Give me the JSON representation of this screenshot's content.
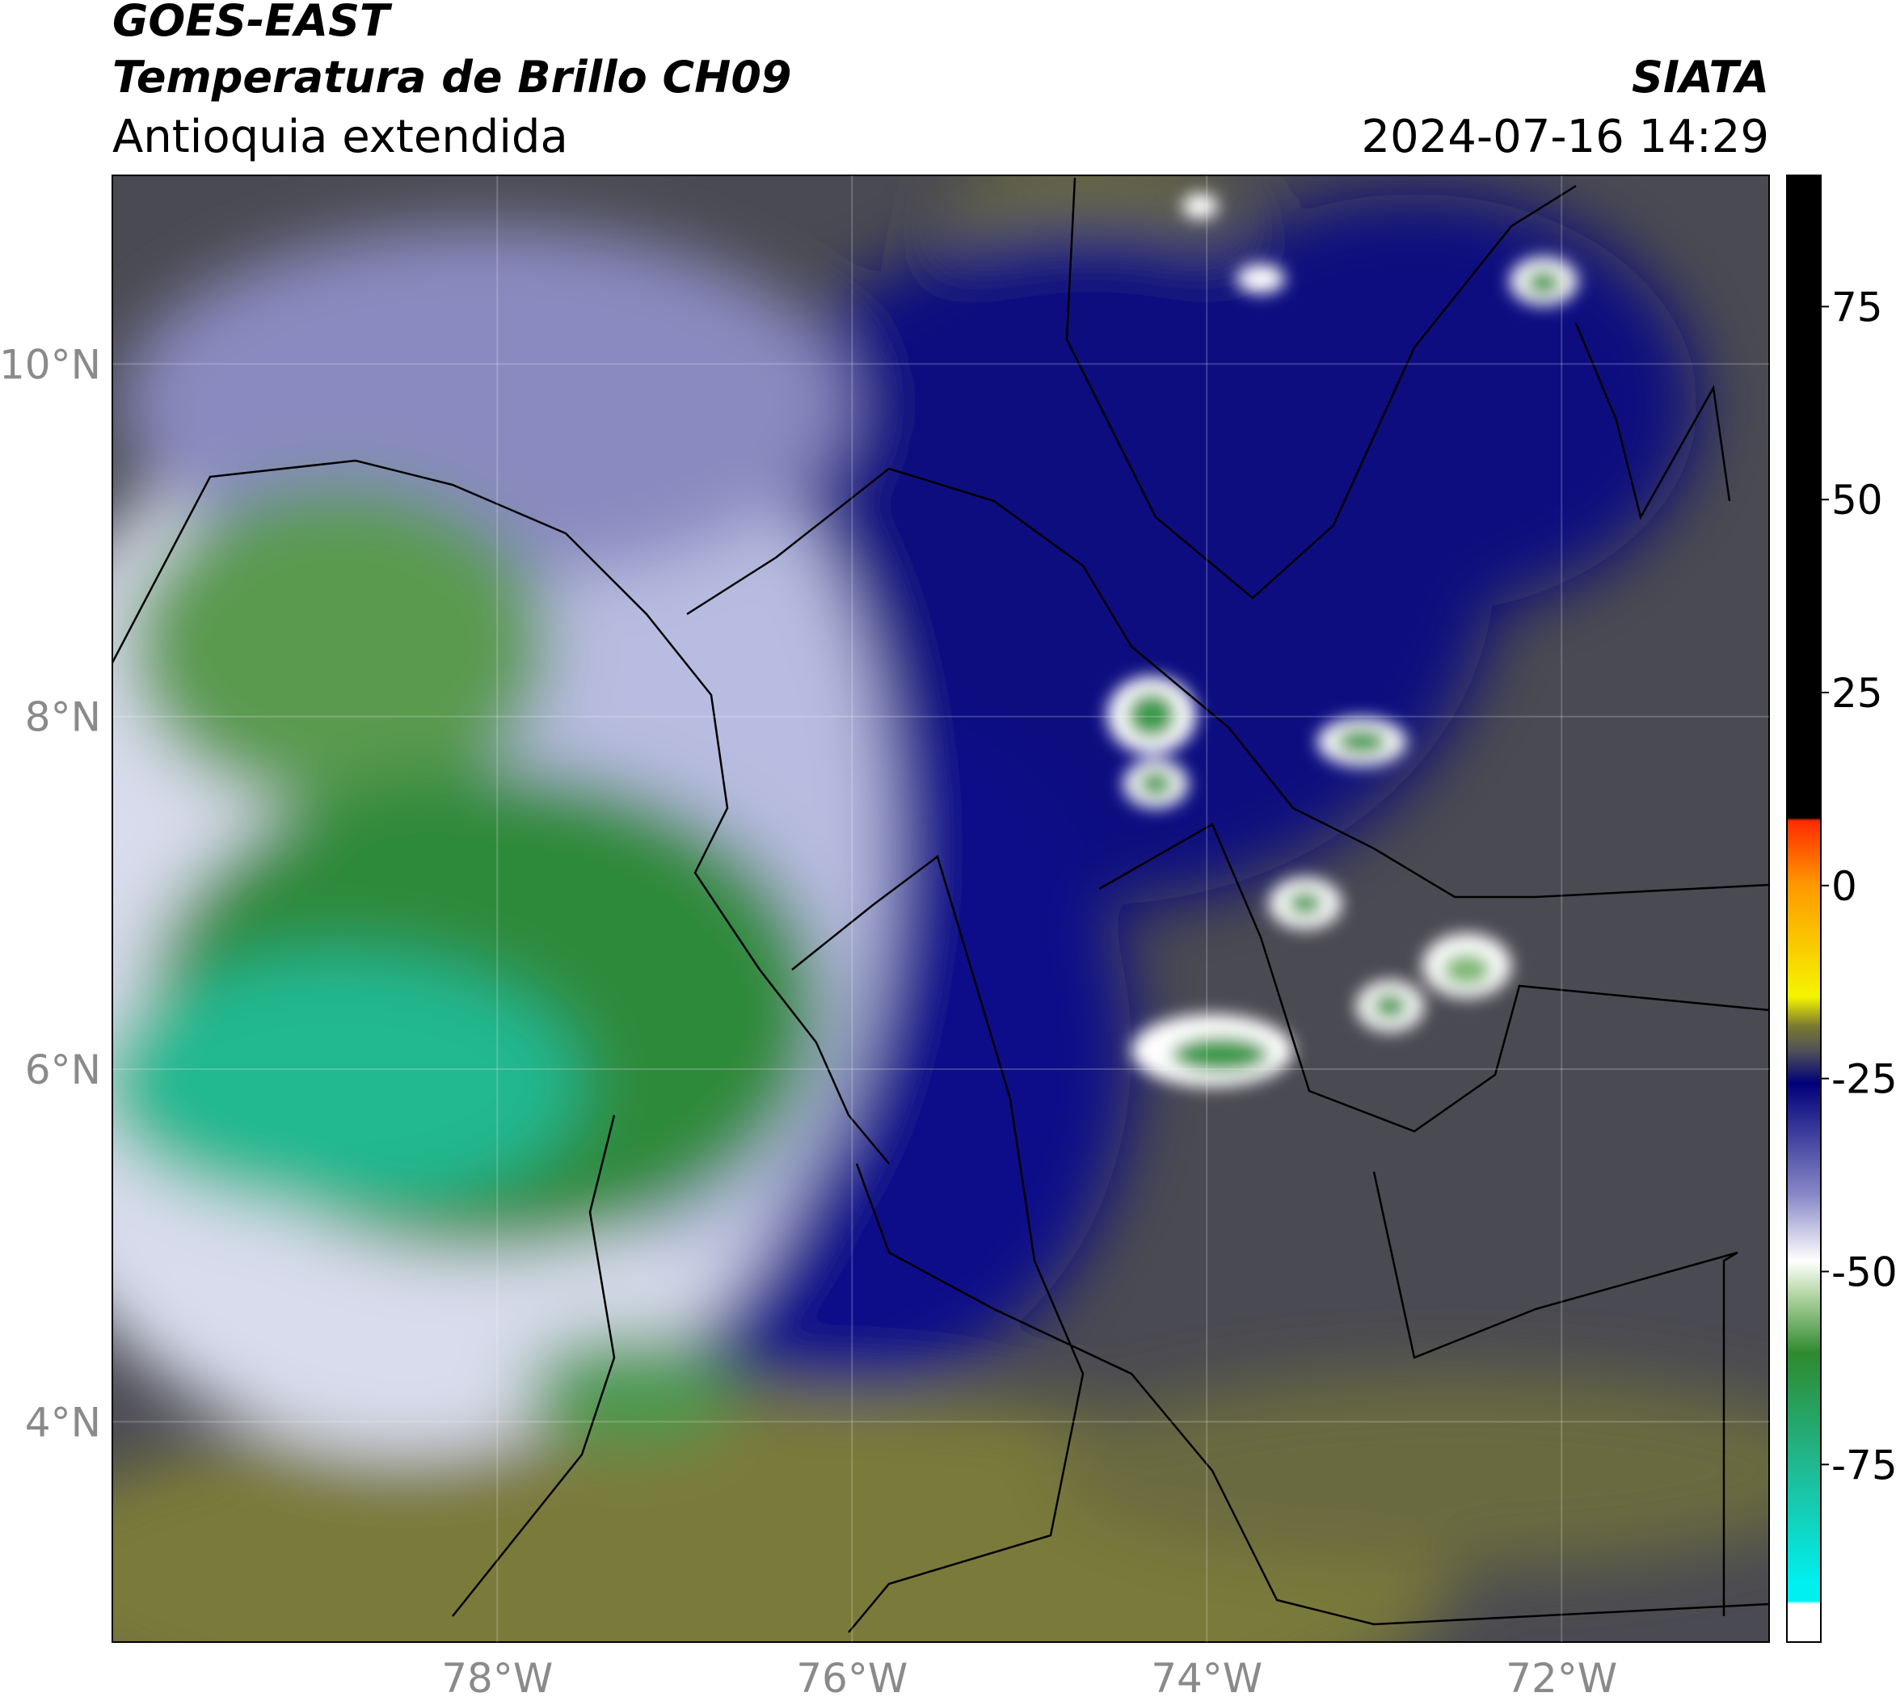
{
  "header": {
    "title": "GOES-EAST",
    "subtitle": "Temperatura de Brillo CH09",
    "region": "Antioquia extendida",
    "source": "SIATA",
    "datetime": "2024-07-16 14:29"
  },
  "map": {
    "xlim": [
      -80.17,
      -70.83
    ],
    "ylim": [
      2.75,
      11.07
    ],
    "xticks": [
      {
        "value": -78,
        "label": "78°W"
      },
      {
        "value": -76,
        "label": "76°W"
      },
      {
        "value": -74,
        "label": "74°W"
      },
      {
        "value": -72,
        "label": "72°W"
      }
    ],
    "yticks": [
      {
        "value": 10,
        "label": "10°N"
      },
      {
        "value": 8,
        "label": "8°N"
      },
      {
        "value": 6,
        "label": "6°N"
      },
      {
        "value": 4,
        "label": "4°N"
      }
    ],
    "grid": true
  },
  "colorbar": {
    "lim": [
      -98,
      92
    ],
    "ticks": [
      75,
      50,
      25,
      0,
      -25,
      -50,
      -75
    ]
  }
}
